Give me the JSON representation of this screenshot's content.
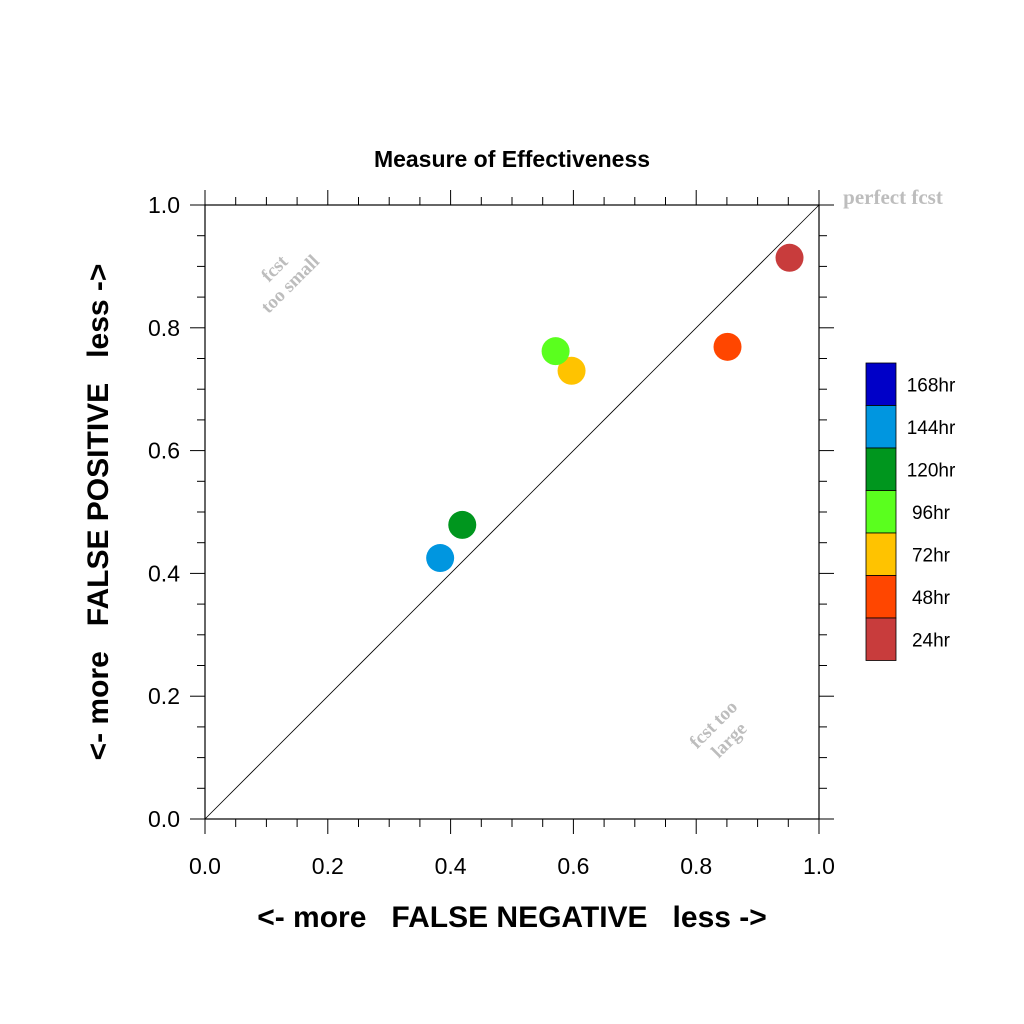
{
  "chart_data": {
    "type": "scatter",
    "title": "Measure of Effectiveness",
    "xlabel": "<- more   FALSE NEGATIVE   less ->",
    "ylabel": "<- more   FALSE POSITIVE   less ->",
    "xlim": [
      0.0,
      1.0
    ],
    "ylim": [
      0.0,
      1.0
    ],
    "x_ticks": [
      "0.0",
      "0.2",
      "0.4",
      "0.6",
      "0.8",
      "1.0"
    ],
    "y_ticks": [
      "0.0",
      "0.2",
      "0.4",
      "0.6",
      "0.8",
      "1.0"
    ],
    "grid": false,
    "diagonal_reference_line": true,
    "annotations": {
      "perfect": "perfect fcst",
      "too_small_line1": "fcst",
      "too_small_line2": "too small",
      "too_large_line1": "fcst too",
      "too_large_line2": "large"
    },
    "legend": {
      "placement": "right",
      "entries": [
        {
          "label": "168hr",
          "color": "#0000c8"
        },
        {
          "label": "144hr",
          "color": "#0096e0"
        },
        {
          "label": "120hr",
          "color": "#00961e"
        },
        {
          "label": "96hr",
          "color": "#5aff1e"
        },
        {
          "label": "72hr",
          "color": "#ffc300"
        },
        {
          "label": "48hr",
          "color": "#ff4600"
        },
        {
          "label": "24hr",
          "color": "#c83c3c"
        }
      ]
    },
    "series": [
      {
        "name": "24hr",
        "x": 0.952,
        "y": 0.914,
        "color": "#c83c3c"
      },
      {
        "name": "48hr",
        "x": 0.851,
        "y": 0.769,
        "color": "#ff4600"
      },
      {
        "name": "72hr",
        "x": 0.597,
        "y": 0.73,
        "color": "#ffc300"
      },
      {
        "name": "96hr",
        "x": 0.571,
        "y": 0.762,
        "color": "#5aff1e"
      },
      {
        "name": "120hr",
        "x": 0.419,
        "y": 0.479,
        "color": "#00961e"
      },
      {
        "name": "144hr",
        "x": 0.383,
        "y": 0.425,
        "color": "#0096e0"
      }
    ]
  }
}
